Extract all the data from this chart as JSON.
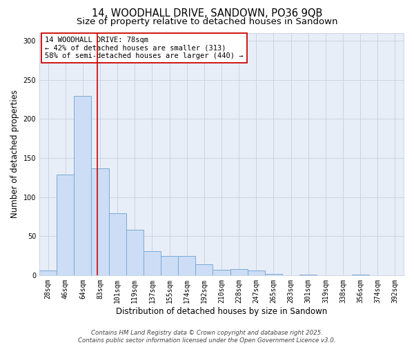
{
  "title": "14, WOODHALL DRIVE, SANDOWN, PO36 9QB",
  "subtitle": "Size of property relative to detached houses in Sandown",
  "xlabel": "Distribution of detached houses by size in Sandown",
  "ylabel": "Number of detached properties",
  "bar_labels": [
    "28sqm",
    "46sqm",
    "64sqm",
    "83sqm",
    "101sqm",
    "119sqm",
    "137sqm",
    "155sqm",
    "174sqm",
    "192sqm",
    "210sqm",
    "228sqm",
    "247sqm",
    "265sqm",
    "283sqm",
    "301sqm",
    "319sqm",
    "338sqm",
    "356sqm",
    "374sqm",
    "392sqm"
  ],
  "bar_values": [
    6,
    129,
    229,
    137,
    79,
    58,
    31,
    25,
    25,
    14,
    7,
    8,
    6,
    2,
    0,
    1,
    0,
    0,
    1,
    0,
    0
  ],
  "bar_color": "#ccddf5",
  "bar_edgecolor": "#7aaad4",
  "bar_linewidth": 0.7,
  "vline_x": 2.82,
  "vline_color": "#cc0000",
  "vline_linewidth": 1.2,
  "ylim": [
    0,
    310
  ],
  "yticks": [
    0,
    50,
    100,
    150,
    200,
    250,
    300
  ],
  "annotation_title": "14 WOODHALL DRIVE: 78sqm",
  "annotation_line2": "← 42% of detached houses are smaller (313)",
  "annotation_line3": "58% of semi-detached houses are larger (440) →",
  "annotation_box_facecolor": "#ffffff",
  "annotation_box_edgecolor": "#cc0000",
  "footer_line1": "Contains HM Land Registry data © Crown copyright and database right 2025.",
  "footer_line2": "Contains public sector information licensed under the Open Government Licence v3.0.",
  "fig_facecolor": "#ffffff",
  "plot_facecolor": "#e8eef8",
  "grid_color": "#c5cfe0",
  "title_fontsize": 10.5,
  "subtitle_fontsize": 9.5,
  "axis_label_fontsize": 8.5,
  "tick_fontsize": 7,
  "annotation_fontsize": 7.5,
  "footer_fontsize": 6.2
}
